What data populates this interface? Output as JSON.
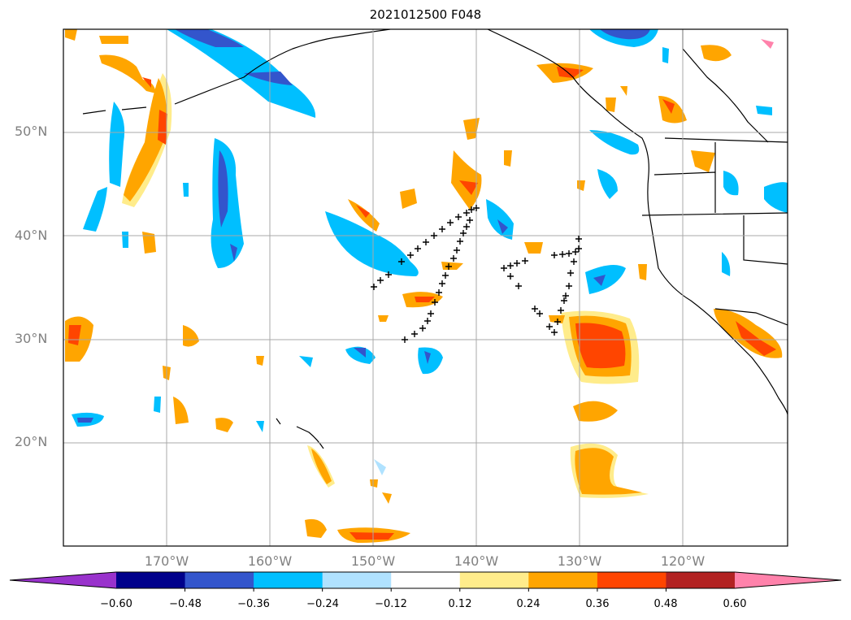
{
  "title": "2021012500 F048",
  "lat_labels": [
    "20°N",
    "30°N",
    "40°N",
    "50°N"
  ],
  "lon_labels": [
    "170°W",
    "160°W",
    "150°W",
    "140°W",
    "130°W",
    "120°W"
  ],
  "colorbar": {
    "ticks": [
      "−0.60",
      "−0.48",
      "−0.36",
      "−0.24",
      "−0.12",
      "0.12",
      "0.24",
      "0.36",
      "0.48",
      "0.60"
    ],
    "colors": [
      "#9932cc",
      "#00008b",
      "#3355cc",
      "#00bfff",
      "#b0e2ff",
      "#ffffff",
      "#ffec8b",
      "#ffa500",
      "#ff4500",
      "#b22222",
      "#ff82ab"
    ]
  },
  "map": {
    "extent": {
      "lon_min": -180,
      "lon_max": -110,
      "lat_min": 10,
      "lat_max": 60
    },
    "markers": "+"
  }
}
